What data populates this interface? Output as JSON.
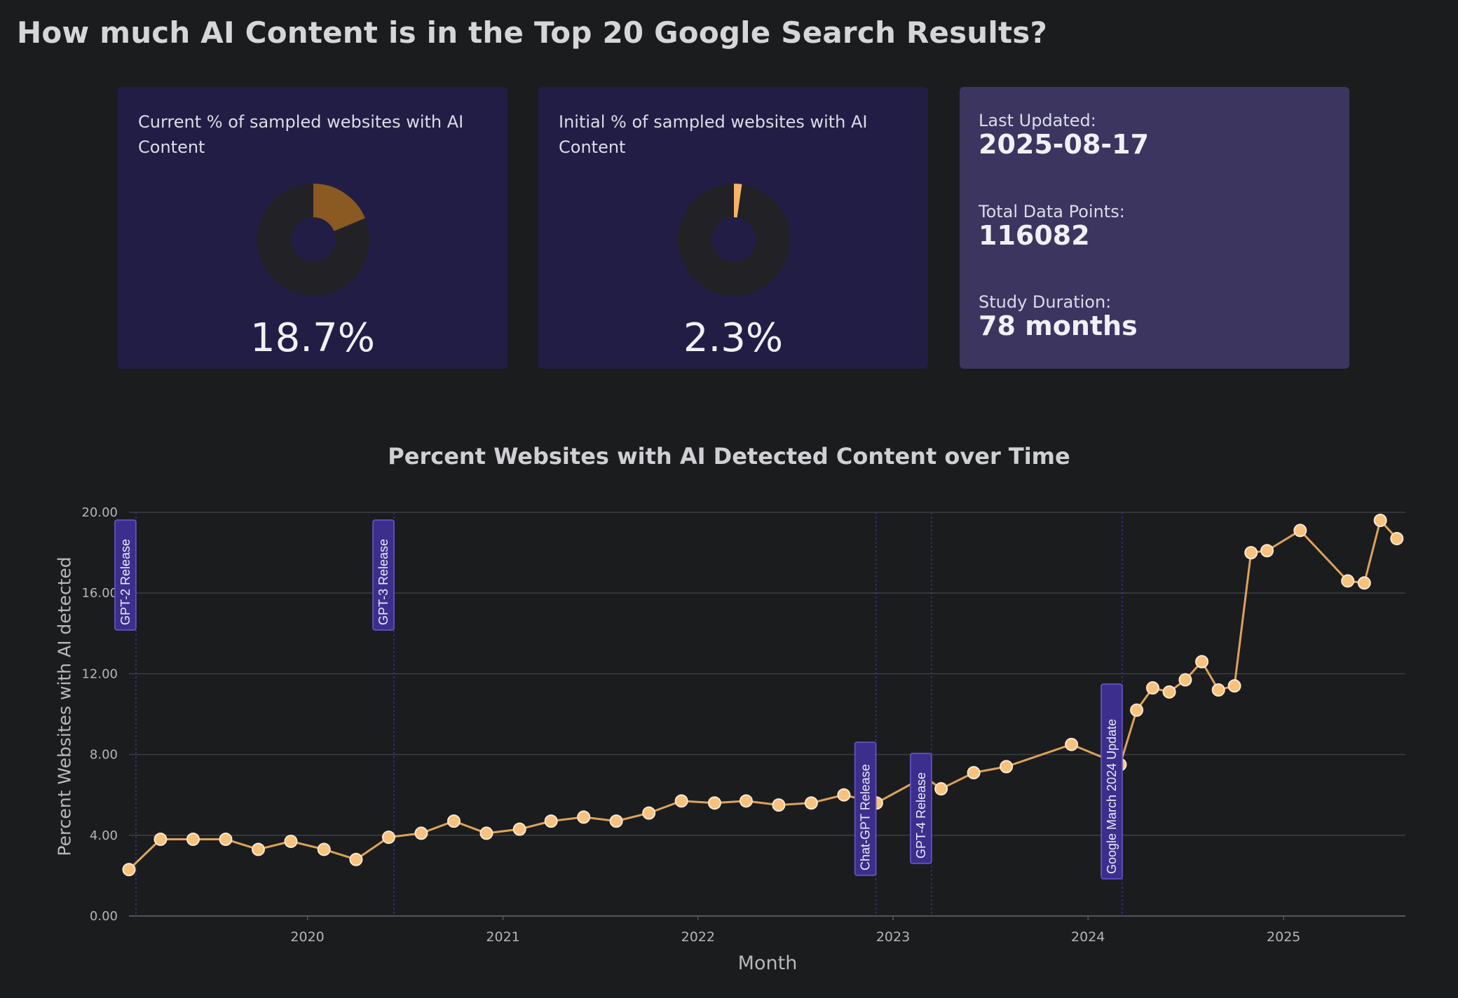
{
  "page": {
    "title": "How much AI Content is in the Top 20 Google Search Results?"
  },
  "cards": {
    "current": {
      "label": "Current % of sampled websites with AI Content",
      "value": "18.7%",
      "fraction": 0.187,
      "color": "#8a5a22"
    },
    "initial": {
      "label": "Initial % of sampled websites with AI Content",
      "value": "2.3%",
      "fraction": 0.023,
      "color": "#f6b46a"
    },
    "stats": {
      "last_updated_label": "Last Updated:",
      "last_updated_value": "2025-08-17",
      "total_points_label": "Total Data Points:",
      "total_points_value": "116082",
      "duration_label": "Study Duration:",
      "duration_value": "78 months"
    }
  },
  "chart_data": {
    "type": "line",
    "title": "Percent Websites with AI Detected Content over Time",
    "xlabel": "Month",
    "ylabel": "Percent Websites with AI detected",
    "ylim": [
      0,
      20
    ],
    "xlim": [
      "2019-02-01",
      "2025-08-17"
    ],
    "yticks": [
      "0.00",
      "4.00",
      "8.00",
      "12.00",
      "16.00",
      "20.00"
    ],
    "xticks": [
      "2020",
      "2021",
      "2022",
      "2023",
      "2024",
      "2025"
    ],
    "grid": true,
    "line_color": "#dba35a",
    "marker_color": "#f6c27d",
    "series": [
      {
        "x": [
          "2019-02",
          "2019-04",
          "2019-06",
          "2019-08",
          "2019-10",
          "2019-12",
          "2020-02",
          "2020-04",
          "2020-06",
          "2020-08",
          "2020-10",
          "2020-12",
          "2021-02",
          "2021-04",
          "2021-06",
          "2021-08",
          "2021-10",
          "2021-12",
          "2022-02",
          "2022-04",
          "2022-06",
          "2022-08",
          "2022-10",
          "2022-12",
          "2023-03",
          "2023-04",
          "2023-06",
          "2023-08",
          "2023-12",
          "2024-03",
          "2024-04",
          "2024-05",
          "2024-06",
          "2024-07",
          "2024-08",
          "2024-09",
          "2024-10",
          "2024-11",
          "2024-12",
          "2025-02",
          "2025-05",
          "2025-06",
          "2025-07",
          "2025-08"
        ],
        "values": [
          2.3,
          3.8,
          3.8,
          3.8,
          3.3,
          3.7,
          3.3,
          2.8,
          3.9,
          4.1,
          4.7,
          4.1,
          4.3,
          4.7,
          4.9,
          4.7,
          5.1,
          5.7,
          5.6,
          5.7,
          5.5,
          5.6,
          6.0,
          5.6,
          6.9,
          6.3,
          7.1,
          7.4,
          8.5,
          7.5,
          10.2,
          11.3,
          11.1,
          11.7,
          12.6,
          11.2,
          11.4,
          18.0,
          18.1,
          19.1,
          16.6,
          16.5,
          19.6,
          18.7
        ]
      }
    ],
    "annotations": [
      {
        "date": "2019-02-14",
        "label": "GPT-2 Release"
      },
      {
        "date": "2020-06-11",
        "label": "GPT-3 Release"
      },
      {
        "date": "2022-11-30",
        "label": "Chat-GPT Release"
      },
      {
        "date": "2023-03-14",
        "label": "GPT-4 Release"
      },
      {
        "date": "2024-03-05",
        "label": "Google March 2024 Update"
      }
    ],
    "annotation_color": "#3c2e8c"
  }
}
